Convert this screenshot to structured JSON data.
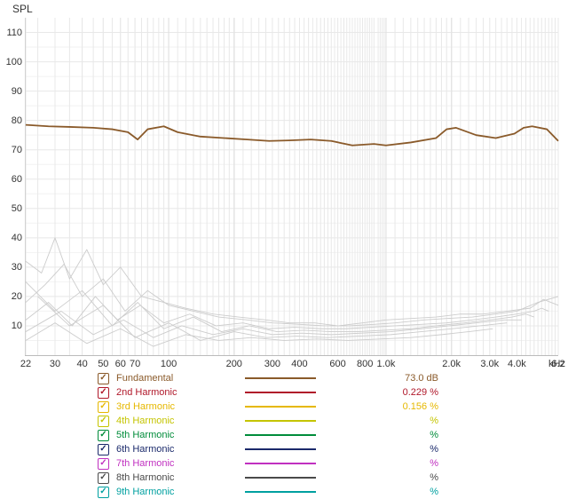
{
  "chart": {
    "type": "line",
    "y_label": "SPL",
    "x_unit": "kHz",
    "background_color": "#ffffff",
    "axis_color": "#bbbbbb",
    "grid_minor_color": "#e8e8e8",
    "grid_major_color": "#cfcfcf",
    "tick_font_size": 11,
    "label_font_size": 12,
    "label_color": "#333333",
    "xscale": "log",
    "yscale": "linear",
    "xlim": [
      22,
      6200
    ],
    "ylim": [
      0,
      115
    ],
    "yticks": [
      10,
      20,
      30,
      40,
      50,
      60,
      70,
      80,
      90,
      100,
      110
    ],
    "xticks": [
      {
        "v": 22,
        "label": "22"
      },
      {
        "v": 30,
        "label": "30"
      },
      {
        "v": 40,
        "label": "40"
      },
      {
        "v": 50,
        "label": "50"
      },
      {
        "v": 60,
        "label": "60"
      },
      {
        "v": 70,
        "label": "70"
      },
      {
        "v": 80,
        "label": " "
      },
      {
        "v": 100,
        "label": "100"
      },
      {
        "v": 200,
        "label": "200"
      },
      {
        "v": 300,
        "label": "300"
      },
      {
        "v": 400,
        "label": "400"
      },
      {
        "v": 500,
        "label": " "
      },
      {
        "v": 600,
        "label": "600"
      },
      {
        "v": 700,
        "label": " "
      },
      {
        "v": 800,
        "label": "800"
      },
      {
        "v": 1000,
        "label": "1.0k"
      },
      {
        "v": 2000,
        "label": "2.0k"
      },
      {
        "v": 3000,
        "label": "3.0k"
      },
      {
        "v": 4000,
        "label": "4.0k"
      },
      {
        "v": 5000,
        "label": " "
      },
      {
        "v": 6200,
        "label": "6.2"
      }
    ],
    "grid_vert_minor": [
      22,
      25,
      30,
      35,
      40,
      45,
      50,
      55,
      60,
      65,
      70,
      75,
      80,
      85,
      90,
      95,
      110,
      120,
      130,
      140,
      150,
      160,
      170,
      180,
      190,
      220,
      240,
      260,
      280,
      320,
      340,
      360,
      380,
      420,
      440,
      460,
      480,
      520,
      540,
      560,
      580,
      620,
      640,
      660,
      680,
      720,
      740,
      760,
      780,
      820,
      840,
      860,
      880,
      920,
      940,
      960,
      980,
      1100,
      1200,
      1300,
      1400,
      1500,
      1600,
      1700,
      1800,
      1900,
      2200,
      2400,
      2600,
      2800,
      3200,
      3400,
      3600,
      3800,
      4200,
      4400,
      4600,
      4800,
      5200,
      5400,
      5600,
      5800,
      6000
    ],
    "grid_vert_major": [
      100,
      200,
      1000,
      2000
    ],
    "fundamental": {
      "color": "#8a5a2a",
      "width": 1.8,
      "x": [
        22,
        28,
        35,
        45,
        55,
        65,
        72,
        80,
        95,
        110,
        140,
        180,
        230,
        290,
        360,
        450,
        560,
        700,
        880,
        1000,
        1300,
        1700,
        1900,
        2100,
        2600,
        3200,
        3900,
        4300,
        4700,
        5500,
        6200
      ],
      "y": [
        78.5,
        78,
        77.8,
        77.5,
        77,
        76,
        73.5,
        77,
        78,
        76,
        74.5,
        74,
        73.5,
        73,
        73.2,
        73.5,
        73,
        71.5,
        72,
        71.5,
        72.5,
        74,
        77,
        77.5,
        75,
        74,
        75.5,
        77.5,
        78,
        77,
        73
      ]
    },
    "harmonic_color": "#cccccc",
    "harmonic_width": 0.9,
    "harmonics_lower": [
      {
        "x": [
          22,
          26,
          30,
          35,
          42,
          50,
          60,
          75,
          95,
          120,
          160,
          210,
          280,
          360,
          470,
          600,
          780,
          1000,
          1300,
          1700,
          2200,
          2800,
          3600,
          4600,
          5300,
          6200
        ],
        "y": [
          32,
          28,
          40,
          26,
          36,
          24,
          30,
          20,
          18,
          16,
          14,
          13,
          12,
          11,
          11,
          10,
          11,
          12,
          12.5,
          13,
          14,
          14,
          15,
          16,
          19,
          17
        ]
      },
      {
        "x": [
          22,
          27,
          33,
          40,
          50,
          63,
          80,
          100,
          130,
          170,
          230,
          300,
          400,
          520,
          680,
          880,
          1100,
          1500,
          1900,
          2500,
          3200,
          4000,
          5000,
          6200
        ],
        "y": [
          18,
          24,
          31,
          20,
          26,
          15,
          22,
          17,
          15,
          13,
          12,
          11,
          10.5,
          10,
          10,
          10.5,
          11,
          12,
          12.5,
          13,
          14,
          15,
          18,
          20
        ]
      },
      {
        "x": [
          22,
          28,
          36,
          46,
          58,
          74,
          95,
          125,
          165,
          220,
          290,
          380,
          500,
          650,
          850,
          1100,
          1450,
          1900,
          2500,
          3200,
          4000,
          4800,
          5200,
          5600
        ],
        "y": [
          12,
          18,
          10,
          20,
          12,
          17,
          11,
          14,
          10,
          11,
          9,
          9.5,
          9,
          9,
          9.5,
          10,
          10.5,
          11,
          12,
          13,
          14,
          15,
          16,
          15
        ]
      },
      {
        "x": [
          22,
          30,
          40,
          55,
          72,
          95,
          130,
          175,
          235,
          315,
          420,
          560,
          740,
          980,
          1300,
          1700,
          2300,
          3000,
          3800,
          4400,
          4800
        ],
        "y": [
          25,
          15,
          22,
          10,
          18,
          9,
          13,
          8,
          10,
          8,
          8.5,
          8,
          8,
          8.5,
          9,
          10,
          11,
          12,
          13,
          14,
          13
        ]
      },
      {
        "x": [
          22,
          32,
          45,
          62,
          85,
          115,
          160,
          220,
          300,
          410,
          560,
          770,
          1050,
          1450,
          1950,
          2600,
          3500,
          4200
        ],
        "y": [
          8,
          15,
          7,
          12,
          6,
          10,
          7,
          9,
          7,
          7.5,
          7,
          7.5,
          8,
          9,
          10,
          11,
          12,
          12
        ]
      },
      {
        "x": [
          25,
          35,
          50,
          70,
          100,
          140,
          200,
          280,
          390,
          540,
          750,
          1050,
          1450,
          2000,
          2700,
          3600
        ],
        "y": [
          20,
          10,
          17,
          6,
          11,
          5,
          8,
          6,
          6.5,
          6,
          6.5,
          7,
          8,
          9,
          10,
          11
        ]
      },
      {
        "x": [
          22,
          30,
          42,
          60,
          85,
          120,
          170,
          240,
          340,
          480,
          670,
          940,
          1300,
          1800,
          2400,
          3100
        ],
        "y": [
          5,
          11,
          4,
          9,
          3,
          7,
          5,
          6,
          5,
          5.5,
          5,
          5.5,
          6,
          7,
          8,
          9
        ]
      }
    ]
  },
  "legend": {
    "check_glyph": "✓",
    "font_size": 11,
    "items": [
      {
        "name": "Fundamental",
        "color": "#8a5a2a",
        "checked": true,
        "value": "73.0 dB",
        "value_color": "#8a5a2a"
      },
      {
        "name": "2nd Harmonic",
        "color": "#b0182a",
        "checked": true,
        "value": "0.229 %",
        "value_color": "#b0182a"
      },
      {
        "name": "3rd Harmonic",
        "color": "#e6b800",
        "checked": true,
        "value": "0.156 %",
        "value_color": "#e6b800"
      },
      {
        "name": "4th Harmonic",
        "color": "#c4c400",
        "checked": true,
        "value": "%",
        "value_color": "#c4c400"
      },
      {
        "name": "5th Harmonic",
        "color": "#008c3a",
        "checked": true,
        "value": "%",
        "value_color": "#008c3a"
      },
      {
        "name": "6th Harmonic",
        "color": "#1b2a6b",
        "checked": true,
        "value": "%",
        "value_color": "#1b2a6b"
      },
      {
        "name": "7th Harmonic",
        "color": "#c030c0",
        "checked": true,
        "value": "%",
        "value_color": "#c030c0"
      },
      {
        "name": "8th Harmonic",
        "color": "#4a4a4a",
        "checked": true,
        "value": "%",
        "value_color": "#4a4a4a"
      },
      {
        "name": "9th Harmonic",
        "color": "#00a0a0",
        "checked": true,
        "value": "%",
        "value_color": "#00a0a0"
      }
    ]
  }
}
